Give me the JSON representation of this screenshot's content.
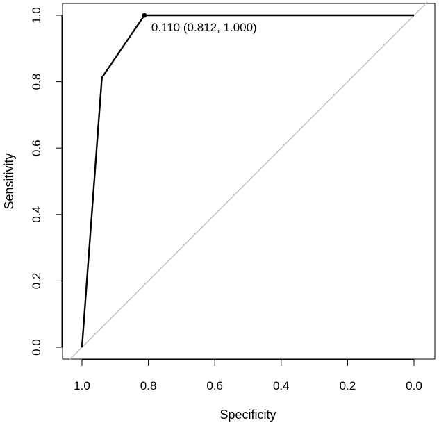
{
  "chart_data": {
    "type": "line",
    "title": "",
    "xlabel": "Specificity",
    "ylabel": "Sensitivity",
    "x_reversed": true,
    "xlim": [
      1.0,
      0.0
    ],
    "ylim": [
      0.0,
      1.0
    ],
    "x_ticks": [
      "1.0",
      "0.8",
      "0.6",
      "0.4",
      "0.2",
      "0.0"
    ],
    "y_ticks": [
      "0.0",
      "0.2",
      "0.4",
      "0.6",
      "0.8",
      "1.0"
    ],
    "grid": false,
    "series": [
      {
        "role": "roc-curve",
        "color": "#000000",
        "points": [
          {
            "specificity": 1.0,
            "sensitivity": 0.0
          },
          {
            "specificity": 0.94,
            "sensitivity": 0.812
          },
          {
            "specificity": 0.812,
            "sensitivity": 1.0
          },
          {
            "specificity": 0.0,
            "sensitivity": 1.0
          }
        ]
      },
      {
        "role": "reference-diagonal",
        "color": "#b3b3b3",
        "points": [
          {
            "specificity": 1.04,
            "sensitivity": -0.04
          },
          {
            "specificity": -0.04,
            "sensitivity": 1.04
          }
        ]
      }
    ],
    "annotations": [
      {
        "text": "0.110 (0.812, 1.000)",
        "specificity": 0.812,
        "sensitivity": 1.0
      }
    ]
  }
}
